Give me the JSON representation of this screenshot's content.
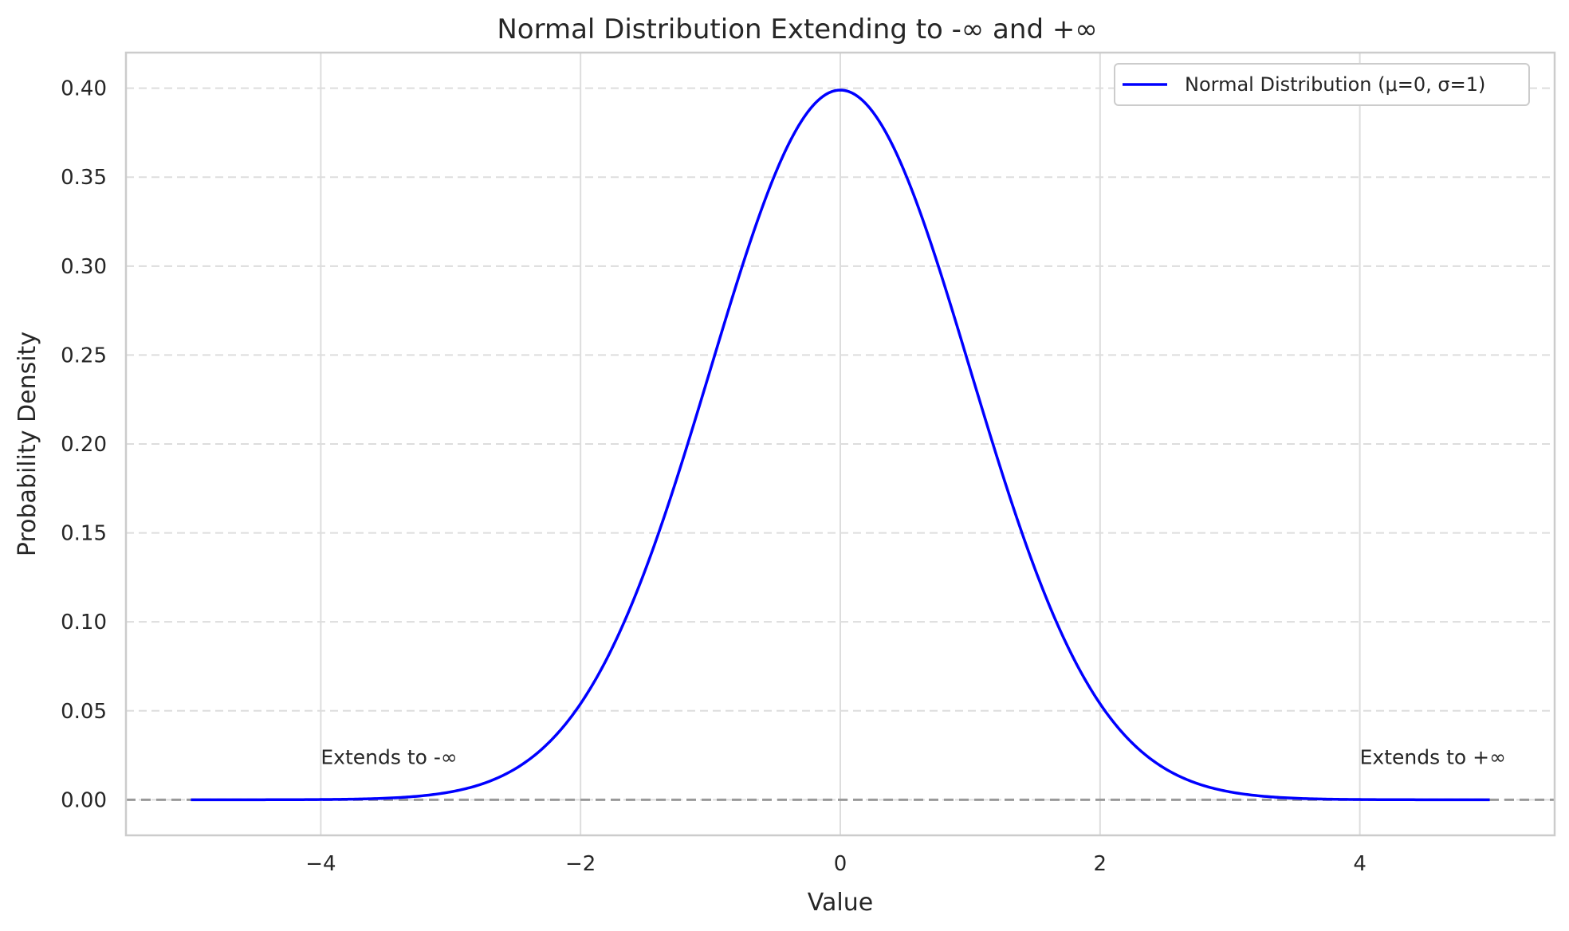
{
  "chart_data": {
    "type": "line",
    "title": "Normal Distribution Extending to -∞ and +∞",
    "xlabel": "Value",
    "ylabel": "Probability Density",
    "xlim": [
      -5.5,
      5.5
    ],
    "ylim": [
      -0.02,
      0.42
    ],
    "x_ticks": [
      -4,
      -2,
      0,
      2,
      4
    ],
    "x_tick_labels": [
      "−4",
      "−2",
      "0",
      "2",
      "4"
    ],
    "y_ticks": [
      0.0,
      0.05,
      0.1,
      0.15,
      0.2,
      0.25,
      0.3,
      0.35,
      0.4
    ],
    "y_tick_labels": [
      "0.00",
      "0.05",
      "0.10",
      "0.15",
      "0.20",
      "0.25",
      "0.30",
      "0.35",
      "0.40"
    ],
    "grid": true,
    "legend_position": "top-right",
    "series": [
      {
        "name": "Normal Distribution (μ=0, σ=1)",
        "color": "#0000ff",
        "distribution": "normal",
        "mean": 0,
        "std": 1,
        "x_range": [
          -5,
          5
        ]
      }
    ],
    "reference_line": {
      "y": 0,
      "color": "#999999",
      "style": "dashed"
    },
    "annotations": [
      {
        "text": "Extends to -∞",
        "x": -4,
        "y": 0.02
      },
      {
        "text": "Extends to +∞",
        "x": 4,
        "y": 0.02
      }
    ]
  }
}
